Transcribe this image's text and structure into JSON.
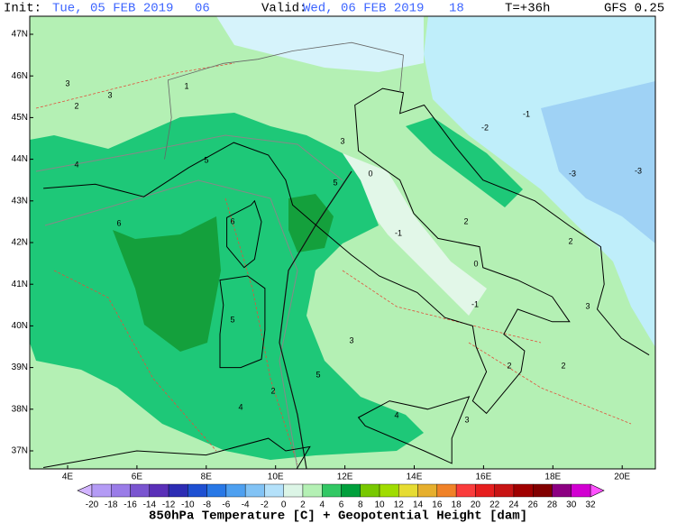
{
  "header": {
    "init_label": "Init:",
    "init_date": "Tue, 05 FEB 2019",
    "init_hour": "06",
    "valid_label": "Valid:",
    "valid_date": "Wed, 06 FEB 2019",
    "valid_hour": "18",
    "lead": "T=+36h",
    "model": "GFS 0.25"
  },
  "map": {
    "lat_labels": [
      "47N",
      "46N",
      "45N",
      "44N",
      "43N",
      "42N",
      "41N",
      "40N",
      "39N",
      "38N",
      "37N"
    ],
    "lon_labels": [
      "4E",
      "6E",
      "8E",
      "10E",
      "12E",
      "14E",
      "16E",
      "18E",
      "20E"
    ],
    "contour_labels": [
      "3",
      "3",
      "2",
      "4",
      "6",
      "5",
      "4",
      "2",
      "5",
      "3",
      "4",
      "2",
      "2",
      "3",
      "2",
      "3",
      "1",
      "3",
      "0",
      "5",
      "-1",
      "0",
      "-1",
      "-2",
      "-3",
      "-3",
      "-1",
      "2",
      "5",
      "6"
    ]
  },
  "colorbar": {
    "labels": [
      -20,
      -18,
      -16,
      -14,
      -12,
      -10,
      -8,
      -6,
      -4,
      -2,
      0,
      2,
      4,
      6,
      8,
      10,
      12,
      14,
      16,
      18,
      20,
      22,
      24,
      26,
      28,
      30,
      32
    ]
  },
  "footer": {
    "title": "850hPa Temperature [C] + Geopotential Height [dam]"
  }
}
